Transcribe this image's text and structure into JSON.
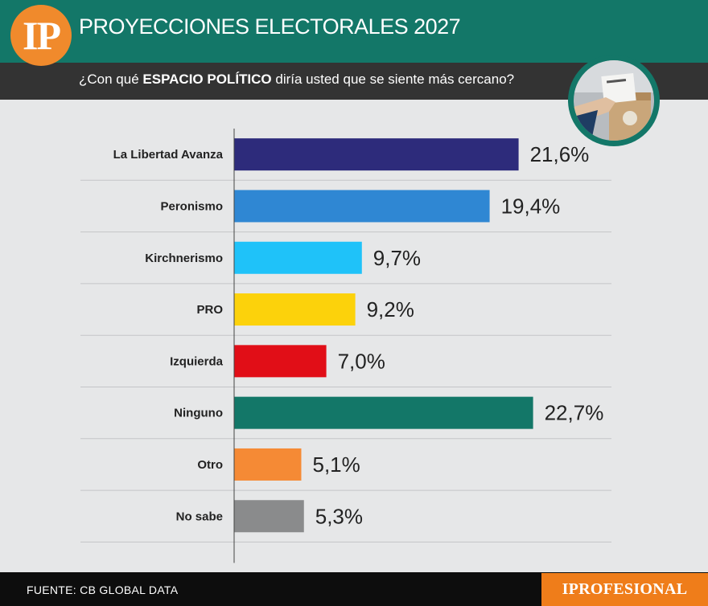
{
  "header": {
    "logo_text": "IP",
    "title": "PROYECCIONES ELECTORALES 2027",
    "question_prefix": "¿Con qué ",
    "question_bold": "ESPACIO POLÍTICO",
    "question_suffix": " diría usted que se siente más cercano?"
  },
  "footer": {
    "source": "FUENTE: CB GLOBAL DATA",
    "brand": "IPROFESIONAL"
  },
  "colors": {
    "header_band": "#137768",
    "sub_band": "#333333",
    "background": "#e6e7e8",
    "brand_orange": "#ef7d1a"
  },
  "chart_data": {
    "type": "bar",
    "orientation": "horizontal",
    "categories": [
      "La Libertad Avanza",
      "Peronismo",
      "Kirchnerismo",
      "PRO",
      "Izquierda",
      "Ninguno",
      "Otro",
      "No sabe"
    ],
    "values": [
      21.6,
      19.4,
      9.7,
      9.2,
      7.0,
      22.7,
      5.1,
      5.3
    ],
    "value_labels": [
      "21,6%",
      "19,4%",
      "9,7%",
      "9,2%",
      "7,0%",
      "22,7%",
      "5,1%",
      "5,3%"
    ],
    "colors": [
      "#2d2b7b",
      "#2f87d3",
      "#1fc2f9",
      "#fcd20b",
      "#e10e17",
      "#137768",
      "#f58a35",
      "#8a8b8c"
    ],
    "xlim": [
      0,
      25
    ],
    "grid": "horizontal separators",
    "unit": "%"
  }
}
